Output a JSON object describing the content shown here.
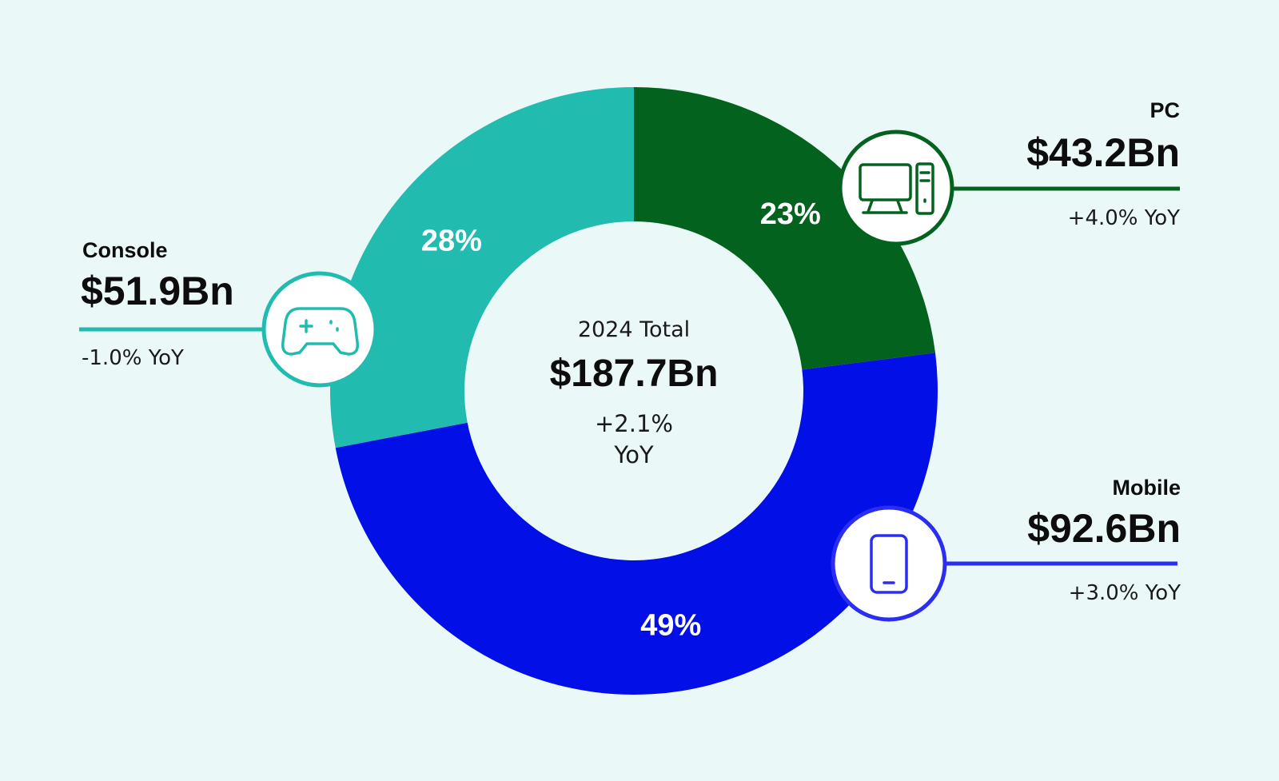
{
  "colors": {
    "background": "#eaf9f8",
    "console": "#22bbb0",
    "pc": "#02621e",
    "mobile": "#020fe6",
    "mobile_icon": "#2b2ef0"
  },
  "chart_data": {
    "type": "pie",
    "variant": "donut",
    "center": {
      "label": "2024 Total",
      "total": "$187.7Bn",
      "yoy_line1": "+2.1%",
      "yoy_line2": "YoY"
    },
    "slices": [
      {
        "name": "PC",
        "percent": 23,
        "percent_label": "23%",
        "value": 43.2,
        "value_label": "$43.2Bn",
        "yoy": "+4.0% YoY",
        "color": "#02621e",
        "icon": "desktop-computer-icon"
      },
      {
        "name": "Mobile",
        "percent": 49,
        "percent_label": "49%",
        "value": 92.6,
        "value_label": "$92.6Bn",
        "yoy": "+3.0% YoY",
        "color": "#020fe6",
        "icon": "smartphone-icon"
      },
      {
        "name": "Console",
        "percent": 28,
        "percent_label": "28%",
        "value": 51.9,
        "value_label": "$51.9Bn",
        "yoy": "-1.0% YoY",
        "color": "#22bbb0",
        "icon": "gamepad-icon"
      }
    ]
  }
}
